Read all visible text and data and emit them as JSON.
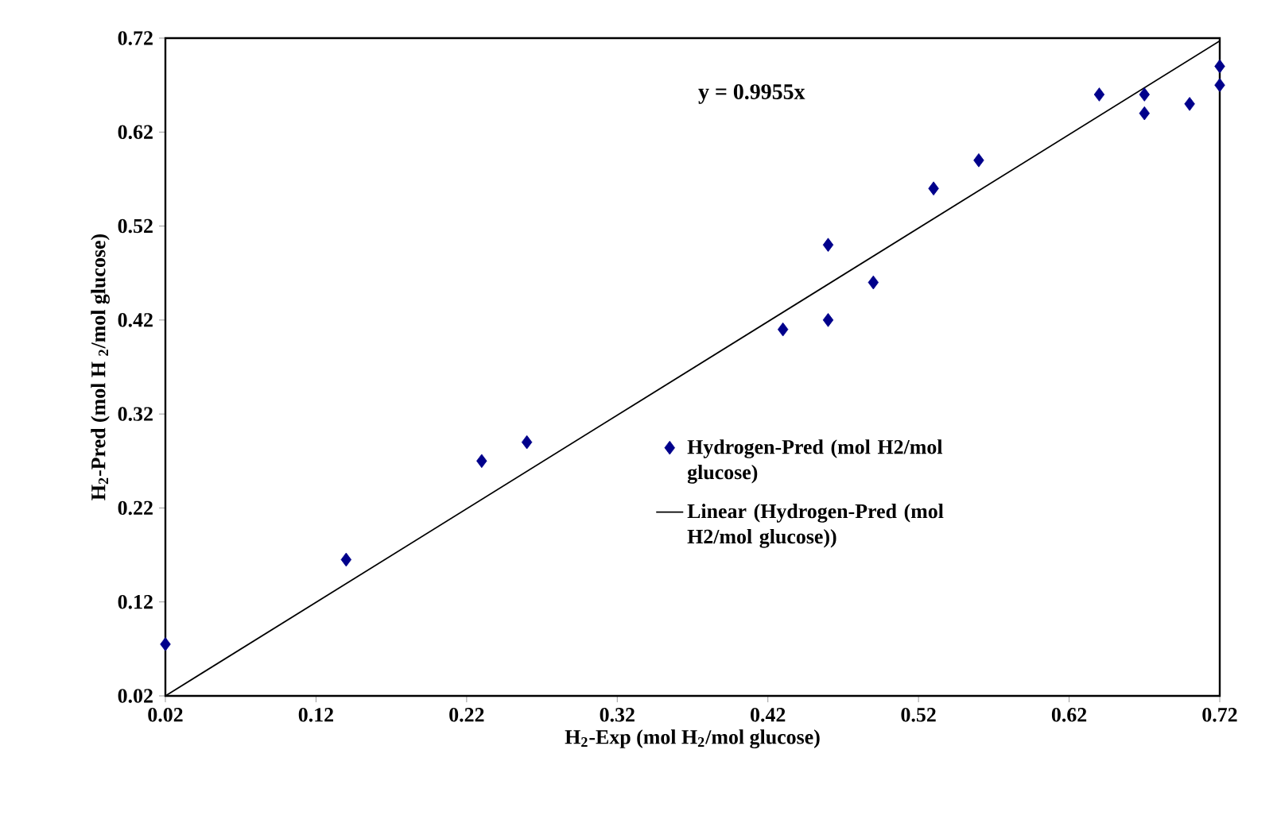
{
  "chart_data": {
    "type": "scatter",
    "xlabel": "H$_{2}$-Exp (mol H$_{2}$/mol glucose)",
    "ylabel": "H$_{2}$-Pred (mol H $_{2}$/mol glucose)",
    "annotations": [
      "y = 0.9955x"
    ],
    "xlim": [
      0.02,
      0.72
    ],
    "ylim": [
      0.02,
      0.72
    ],
    "xticks": [
      0.02,
      0.12,
      0.22,
      0.32,
      0.42,
      0.52,
      0.62,
      0.72
    ],
    "yticks": [
      0.02,
      0.12,
      0.22,
      0.32,
      0.42,
      0.52,
      0.62,
      0.72
    ],
    "legend": "right",
    "grid": false,
    "series": [
      {
        "name": "Hydrogen-Pred (mol H2/mol glucose)",
        "marker": "diamond",
        "color": "#00008b",
        "x": [
          0.02,
          0.14,
          0.23,
          0.26,
          0.43,
          0.46,
          0.46,
          0.49,
          0.53,
          0.56,
          0.64,
          0.67,
          0.67,
          0.7,
          0.72,
          0.72
        ],
        "values": [
          0.075,
          0.165,
          0.27,
          0.29,
          0.41,
          0.42,
          0.5,
          0.46,
          0.56,
          0.59,
          0.66,
          0.66,
          0.64,
          0.65,
          0.67,
          0.69
        ]
      },
      {
        "name": "Linear (Hydrogen-Pred (mol H2/mol glucose))",
        "type": "line",
        "marker": "none",
        "line_style": "solid",
        "color": "#000000",
        "x": [
          0.02,
          0.72
        ],
        "values": [
          0.02,
          0.717
        ]
      }
    ]
  }
}
